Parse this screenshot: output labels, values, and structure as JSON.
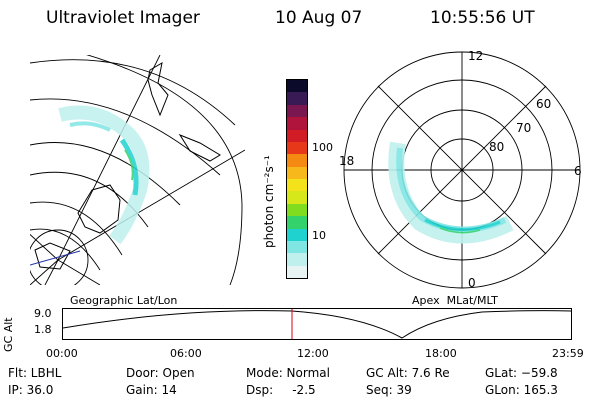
{
  "header": {
    "instrument": "Ultraviolet Imager",
    "date": "10 Aug 07",
    "time": "10:55:56 UT"
  },
  "colorbar": {
    "unit_label": "photon cm⁻²s⁻¹",
    "ticks": [
      "100",
      "10"
    ],
    "colors": [
      "#e8f4f4",
      "#bff0ee",
      "#7fe6e4",
      "#1fd2cf",
      "#33d26b",
      "#7fdc1f",
      "#d6e81a",
      "#f4e31a",
      "#f6b81a",
      "#f48a12",
      "#e8381a",
      "#d11c25",
      "#b0143c",
      "#7a1650",
      "#3a1a55",
      "#0c0a2a"
    ]
  },
  "geo_panel": {
    "label": "Geographic Lat/Lon"
  },
  "polar_panel": {
    "label": "Apex  MLat/MLT",
    "mlt_labels": {
      "top": "12",
      "right": "6",
      "bottom": "0",
      "left": "18"
    },
    "lat_labels": [
      "60",
      "70",
      "80"
    ]
  },
  "altitude_plot": {
    "ylabel": "GC Alt",
    "yticks": [
      "9.0",
      "1.8"
    ],
    "xticks": [
      "00:00",
      "06:00",
      "12:00",
      "18:00",
      "23:59"
    ],
    "marker_color": "#e0000f"
  },
  "status": {
    "filter": "Flt: LBHL",
    "ip": "IP: 36.0",
    "door": "Door: Open",
    "gain": "Gain: 14",
    "mode": "Mode: Normal",
    "dsp": "Dsp:     -2.5",
    "gc_alt": "GC Alt: 7.6 Re",
    "seq": "Seq: 39",
    "glat": "GLat: −59.8",
    "glon": "GLon: 165.3"
  }
}
